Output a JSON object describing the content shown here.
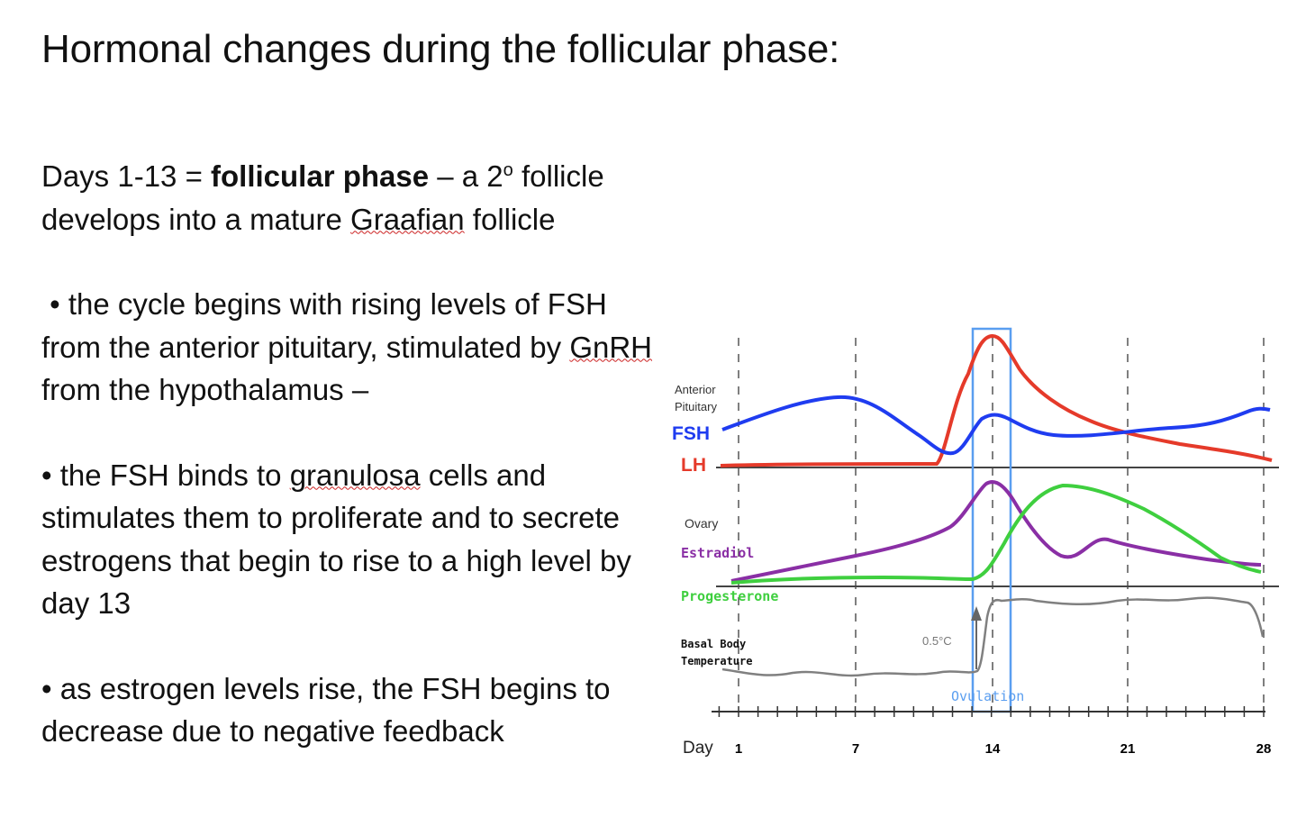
{
  "slide": {
    "title": "Hormonal changes during the follicular phase:",
    "intro": {
      "prefix": "Days 1-13 = ",
      "bold": "follicular phase",
      "after_bold": " – a 2",
      "superscript": "o",
      "suffix_line1": " follicle",
      "line2_pre": "develops into a mature ",
      "line2_underlined": "Graafian",
      "line2_post": " follicle"
    },
    "bullet1": {
      "pre": " • the cycle begins with rising levels of FSH from the anterior pituitary, stimulated by ",
      "underlined": "GnRH",
      "post": " from the hypothalamus –"
    },
    "bullet2": {
      "pre": "• the FSH binds to ",
      "underlined": "granulosa",
      "post": " cells and stimulates them to proliferate and to secrete estrogens that begin to rise to a high level by day 13"
    },
    "bullet3": {
      "text": "• as estrogen levels rise, the FSH begins to decrease due to negative feedback"
    }
  },
  "diagram": {
    "labels": {
      "anterior_pituitary_line1": "Anterior",
      "anterior_pituitary_line2": "Pituitary",
      "fsh": "FSH",
      "lh": "LH",
      "ovary": "Ovary",
      "estradiol": "Estradiol",
      "progesterone": "Progesterone",
      "basal_line1": "Basal Body",
      "basal_line2": "Temperature",
      "temp_shift": "0.5°C",
      "ovulation": "Ovulation",
      "day": "Day"
    },
    "day_ticks": [
      "1",
      "7",
      "14",
      "21",
      "28"
    ],
    "colors": {
      "fsh": "#1f3cf0",
      "lh": "#e53a2a",
      "estradiol": "#8a2fa5",
      "progesterone": "#3fcf3f",
      "temperature": "#808080",
      "ovulation": "#5a9ef0"
    }
  }
}
